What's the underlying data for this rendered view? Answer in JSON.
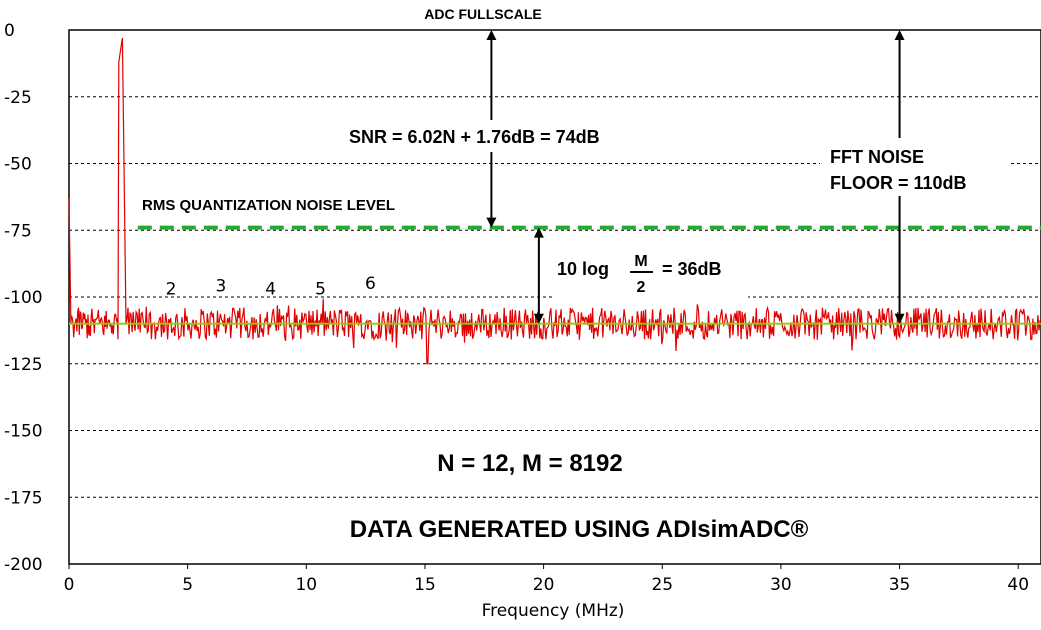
{
  "chart_data": {
    "type": "line",
    "title": "",
    "xlabel": "Frequency (MHz)",
    "ylabel": "",
    "xlim": [
      0,
      40.96
    ],
    "ylim": [
      -200,
      0
    ],
    "xticks": [
      "0",
      "5",
      "10",
      "15",
      "20",
      "25",
      "30",
      "35",
      "40"
    ],
    "yticks": [
      "0",
      "-25",
      "-50",
      "-75",
      "-100",
      "-125",
      "-150",
      "-175",
      "-200"
    ],
    "grid": "horizontal dashed",
    "series": [
      {
        "color": "#e00000",
        "noise_floor_db": -110,
        "noise_ripple_db": 6,
        "noise_dips_db": [
          {
            "x": 15.1,
            "y": -125
          },
          {
            "x": 13.8,
            "y": -119
          },
          {
            "x": 33.0,
            "y": -120
          }
        ],
        "points": [
          {
            "x": 0.0,
            "y": -63
          },
          {
            "x": 0.08,
            "y": -110
          },
          {
            "x": 2.1,
            "y": -12
          },
          {
            "x": 2.25,
            "y": -3
          },
          {
            "x": 2.4,
            "y": -110
          }
        ]
      }
    ],
    "reference_lines": [
      {
        "name": "rms-quantization-noise",
        "y": -74,
        "style": "dashed",
        "color": "#22aa33"
      },
      {
        "name": "fft-noise-floor",
        "y": -110,
        "style": "solid",
        "color": "#88d000"
      }
    ],
    "harmonic_labels": [
      {
        "label": "2",
        "x": 4.3,
        "y": -99
      },
      {
        "label": "3",
        "x": 6.4,
        "y": -98
      },
      {
        "label": "4",
        "x": 8.5,
        "y": -99
      },
      {
        "label": "5",
        "x": 10.6,
        "y": -99
      },
      {
        "label": "6",
        "x": 12.7,
        "y": -97
      }
    ],
    "arrows": [
      {
        "name": "snr-arrow",
        "x": 17.8,
        "y_from": 0,
        "y_to": -74
      },
      {
        "name": "processing-gain-arrow",
        "x": 19.8,
        "y_from": -74,
        "y_to": -110
      },
      {
        "name": "fft-noise-floor-arrow",
        "x": 35.0,
        "y_from": 0,
        "y_to": -110
      }
    ]
  },
  "annotations": {
    "adc_fullscale": "ADC FULLSCALE",
    "snr": "SNR = 6.02N + 1.76dB = 74dB",
    "fft_noise_line1": "FFT NOISE",
    "fft_noise_line2": "FLOOR = 110dB",
    "rms_noise": "RMS QUANTIZATION NOISE LEVEL",
    "gain_prefix": "10 log",
    "gain_numerator": "M",
    "gain_denominator": "2",
    "gain_suffix": "= 36dB",
    "params": "N = 12, M = 8192",
    "source": "DATA GENERATED USING ADIsimADC®"
  }
}
